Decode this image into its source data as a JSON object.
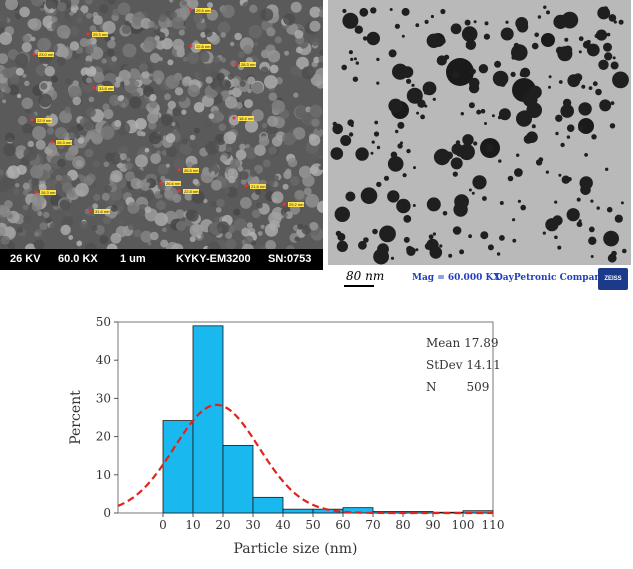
{
  "sem": {
    "bar_items": [
      "26 KV",
      "60.0 KX",
      "1 um",
      "KYKY-EM3200",
      "SN:0753"
    ],
    "labels": [
      "29.5 nm",
      "29.3 nm",
      "22.8 nm",
      "23.0 nm",
      "28.3 nm",
      "33.8 nm",
      "18.4 nm",
      "22.9 nm",
      "26.3 nm",
      "26.5 nm",
      "26.6 nm",
      "22.8 nm",
      "21.6 nm",
      "29.2 nm",
      "31.6 nm",
      "26.3 nm"
    ]
  },
  "tem": {
    "scale_label": "80 nm",
    "magnification": "Mag = 60.000 KX",
    "company": "DayPetronic Company",
    "logo_text": "ZEISS"
  },
  "chart_data": {
    "type": "bar",
    "title": "",
    "xlabel": "Particle size (nm)",
    "ylabel": "Percent",
    "xlim": [
      -15,
      110
    ],
    "ylim": [
      0,
      50
    ],
    "xticks": [
      0,
      10,
      20,
      30,
      40,
      50,
      60,
      70,
      80,
      90,
      100,
      110
    ],
    "yticks": [
      0,
      10,
      20,
      30,
      40,
      50
    ],
    "bins": [
      {
        "x0": 0,
        "x1": 10,
        "value": 24.2
      },
      {
        "x0": 10,
        "x1": 20,
        "value": 49.0
      },
      {
        "x0": 20,
        "x1": 30,
        "value": 17.7
      },
      {
        "x0": 30,
        "x1": 40,
        "value": 4.1
      },
      {
        "x0": 40,
        "x1": 50,
        "value": 1.0
      },
      {
        "x0": 50,
        "x1": 60,
        "value": 1.0
      },
      {
        "x0": 60,
        "x1": 70,
        "value": 1.4
      },
      {
        "x0": 70,
        "x1": 80,
        "value": 0.4
      },
      {
        "x0": 80,
        "x1": 90,
        "value": 0.4
      },
      {
        "x0": 90,
        "x1": 100,
        "value": 0.2
      },
      {
        "x0": 100,
        "x1": 110,
        "value": 0.6
      }
    ],
    "fit": {
      "type": "normal",
      "mean": 17.89,
      "stdev": 14.11,
      "peak": 28.3
    },
    "stats": [
      {
        "label": "Mean",
        "value": "17.89"
      },
      {
        "label": "StDev",
        "value": "14.11"
      },
      {
        "label": "N",
        "value": "509"
      }
    ],
    "colors": {
      "bar": "#19b8ee",
      "bar_edge": "#1a1a1a",
      "fit": "#e0241c"
    }
  }
}
